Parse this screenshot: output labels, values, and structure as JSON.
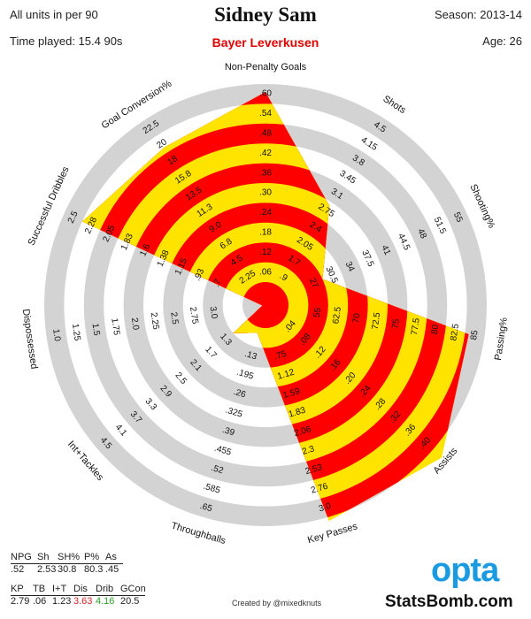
{
  "header": {
    "units": "All units in per 90",
    "time_played": "Time played: 15.4 90s",
    "player_name": "Sidney Sam",
    "team": "Bayer Leverkusen",
    "season": "Season: 2013-14",
    "age": "Age: 26"
  },
  "table1": {
    "headers": [
      "NPG",
      "Sh",
      "SH%",
      "P%",
      "As"
    ],
    "values": [
      ".52",
      "2.53",
      "30.8",
      "80.3",
      ".45"
    ]
  },
  "table2": {
    "headers": [
      "KP",
      "TB",
      "I+T",
      "Dis",
      "Drib",
      "GCon"
    ],
    "values": [
      "2.79",
      ".06",
      "1.23",
      "3.63",
      "4.16",
      "20.5"
    ],
    "value_colors": [
      "",
      "",
      "",
      "#d62728",
      "#2ca02c",
      ""
    ]
  },
  "credit": "Created by @mixedknuts",
  "logos": {
    "opta": "opta",
    "statsbomb": "StatsBomb.com",
    "opta_color": "#1a9ae0"
  },
  "colors": {
    "ring": "#d3d3d3",
    "red": "#ff0000",
    "yellow": "#ffe400"
  },
  "chart_data": {
    "type": "radar",
    "rings": 10,
    "ring_colors": [
      "#ff0000",
      "#ffe400"
    ],
    "axes": [
      {
        "name": "Non-Penalty Goals",
        "ticks": [
          ".06",
          ".12",
          ".18",
          ".24",
          ".30",
          ".36",
          ".42",
          ".48",
          ".54",
          ".60"
        ],
        "value": 0.52,
        "max": 0.6,
        "min": 0.0
      },
      {
        "name": "Shots",
        "ticks": [
          ".9",
          "1.7",
          "2.05",
          "2.4",
          "2.75",
          "3.1",
          "3.45",
          "3.8",
          "4.15",
          "4.5"
        ],
        "value": 2.53
      },
      {
        "name": "Shooting%",
        "ticks": [
          "27",
          "30.5",
          "34",
          "37.5",
          "41",
          "44.5",
          "48",
          "51.5",
          "55"
        ],
        "value": 30.8
      },
      {
        "name": "Passing%",
        "ticks": [
          "55",
          "62.5",
          "70",
          "72.5",
          "75",
          "77.5",
          "80",
          "82.5",
          "85"
        ],
        "value": 80.3
      },
      {
        "name": "Assists",
        "ticks": [
          ".04",
          ".08",
          ".12",
          ".16",
          ".20",
          ".24",
          ".28",
          ".32",
          ".36",
          ".40"
        ],
        "value": 0.45
      },
      {
        "name": "Key Passes",
        "ticks": [
          ".75",
          "1.12",
          "1.59",
          "1.83",
          "2.06",
          "2.3",
          "2.53",
          "2.76",
          "3.0"
        ],
        "value": 2.79
      },
      {
        "name": "Throughballs",
        "ticks": [
          ".13",
          ".195",
          ".26",
          ".325",
          ".39",
          ".455",
          ".52",
          ".585",
          ".65"
        ],
        "value": 0.06
      },
      {
        "name": "Int+Tackles",
        "ticks": [
          "1.3",
          "1.7",
          "2.1",
          "2.5",
          "2.9",
          "3.3",
          "3.7",
          "4.1",
          "4.5"
        ],
        "value": 1.23
      },
      {
        "name": "Dispossessed",
        "ticks": [
          "3.0",
          "2.75",
          "2.5",
          "2.25",
          "2.0",
          "1.75",
          "1.5",
          "1.25",
          "1.0"
        ],
        "value": 3.63
      },
      {
        "name": "Successful Dribbles",
        "ticks": [
          ".7",
          ".93",
          "1.15",
          "1.38",
          "1.6",
          "1.83",
          "2.05",
          "2.28",
          "2.5"
        ],
        "value": 4.16
      },
      {
        "name": "Goal Conversion%",
        "ticks": [
          "2.25",
          "4.5",
          "6.8",
          "9.0",
          "11.3",
          "13.5",
          "15.8",
          "18",
          "20",
          "22.5"
        ],
        "value": 20.5
      }
    ]
  }
}
